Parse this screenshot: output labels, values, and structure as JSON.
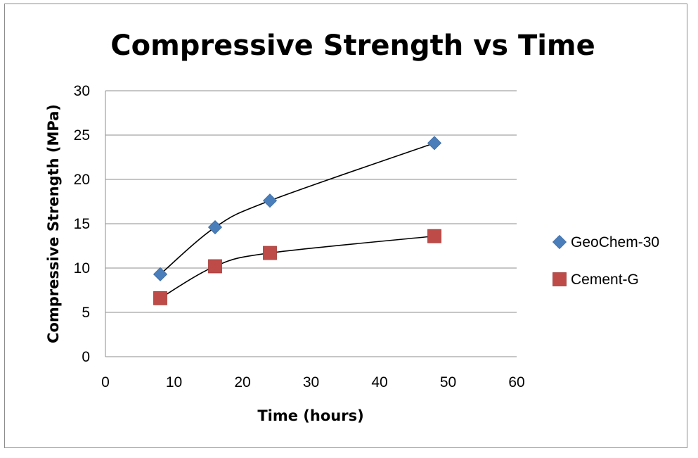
{
  "chart_data": {
    "type": "scatter",
    "title": "Compressive Strength vs Time",
    "xlabel": "Time (hours)",
    "ylabel": "Compressive Strength (MPa)",
    "xlim": [
      0,
      60
    ],
    "ylim": [
      0,
      30
    ],
    "x_ticks": [
      "0",
      "10",
      "20",
      "30",
      "40",
      "50",
      "60"
    ],
    "y_ticks": [
      "0",
      "5",
      "10",
      "15",
      "20",
      "25",
      "30"
    ],
    "grid": "horizontal",
    "legend_position": "right",
    "trendline": "smooth black curve through each series",
    "series": [
      {
        "name": "GeoChem-30",
        "marker": "diamond",
        "color": "#4a7ebb",
        "x": [
          8,
          16,
          24,
          48
        ],
        "y": [
          9.3,
          14.6,
          17.6,
          24.1
        ]
      },
      {
        "name": "Cement-G",
        "marker": "square",
        "color": "#be4b48",
        "x": [
          8,
          16,
          24,
          48
        ],
        "y": [
          6.6,
          10.2,
          11.7,
          13.6
        ]
      }
    ]
  }
}
